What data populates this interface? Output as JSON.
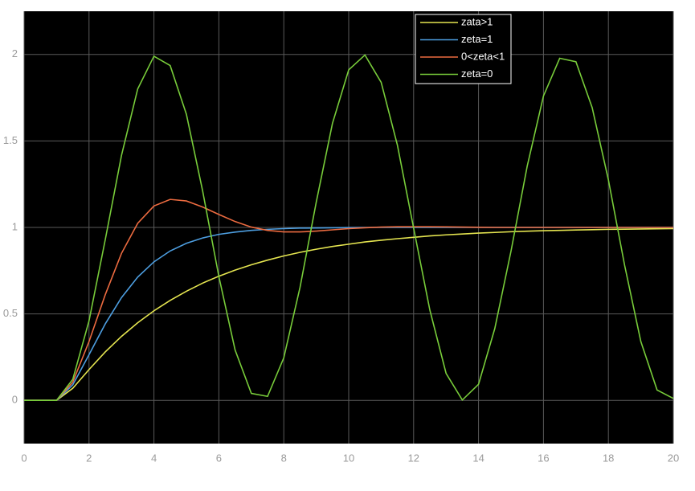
{
  "chart_data": {
    "type": "line",
    "x": [
      0,
      0.5,
      1,
      1.5,
      2,
      2.5,
      3,
      3.5,
      4,
      4.5,
      5,
      5.5,
      6,
      6.5,
      7,
      7.5,
      8,
      8.5,
      9,
      9.5,
      10,
      10.5,
      11,
      11.5,
      12,
      12.5,
      13,
      13.5,
      14,
      14.5,
      15,
      15.5,
      16,
      16.5,
      17,
      17.5,
      18,
      18.5,
      19,
      19.5,
      20
    ],
    "series": [
      {
        "name": "zata>1",
        "color": "#e5e550",
        "values": [
          0,
          0,
          0,
          0.07,
          0.178,
          0.28,
          0.37,
          0.449,
          0.518,
          0.578,
          0.631,
          0.678,
          0.718,
          0.753,
          0.784,
          0.811,
          0.835,
          0.856,
          0.874,
          0.89,
          0.903,
          0.916,
          0.926,
          0.935,
          0.943,
          0.951,
          0.957,
          0.962,
          0.967,
          0.971,
          0.975,
          0.978,
          0.981,
          0.983,
          0.985,
          0.987,
          0.989,
          0.99,
          0.991,
          0.992,
          0.993
        ]
      },
      {
        "name": "zeta=1",
        "color": "#4d9ee0",
        "values": [
          0,
          0,
          0,
          0.09,
          0.264,
          0.442,
          0.594,
          0.713,
          0.801,
          0.864,
          0.908,
          0.939,
          0.96,
          0.973,
          0.983,
          0.989,
          0.993,
          0.996,
          0.997,
          0.998,
          0.999,
          1,
          1,
          1,
          1,
          1,
          1,
          1,
          1,
          1,
          1,
          1,
          1,
          1,
          1,
          1,
          1,
          1,
          1,
          1,
          1
        ]
      },
      {
        "name": "0<zeta<1",
        "color": "#ec6b40",
        "values": [
          0,
          0,
          0,
          0.105,
          0.34,
          0.611,
          0.85,
          1.024,
          1.124,
          1.162,
          1.153,
          1.118,
          1.075,
          1.034,
          1.002,
          0.983,
          0.974,
          0.974,
          0.979,
          0.986,
          0.993,
          0.998,
          1.002,
          1.004,
          1.004,
          1.004,
          1.003,
          1.002,
          1.001,
          1,
          1,
          1,
          1,
          1,
          1,
          1,
          1,
          1,
          1,
          1,
          1
        ]
      },
      {
        "name": "zeta=0",
        "color": "#78cc3a",
        "values": [
          0,
          0,
          0,
          0.122,
          0.46,
          0.929,
          1.416,
          1.801,
          1.99,
          1.936,
          1.654,
          1.211,
          0.716,
          0.291,
          0.04,
          0.023,
          0.246,
          0.653,
          1.146,
          1.602,
          1.911,
          1.997,
          1.839,
          1.476,
          0.996,
          0.522,
          0.156,
          0.002,
          0.093,
          0.415,
          0.863,
          1.355,
          1.76,
          1.978,
          1.958,
          1.693,
          1.275,
          0.781,
          0.34,
          0.06,
          0.011
        ]
      }
    ],
    "xlim": [
      0,
      20
    ],
    "xticks": [
      0,
      2,
      4,
      6,
      8,
      10,
      12,
      14,
      16,
      18,
      20
    ],
    "ylim": [
      -0.25,
      2.25
    ],
    "yticks": [
      0,
      0.5,
      1,
      1.5,
      2
    ],
    "grid": true,
    "legend": "top"
  }
}
